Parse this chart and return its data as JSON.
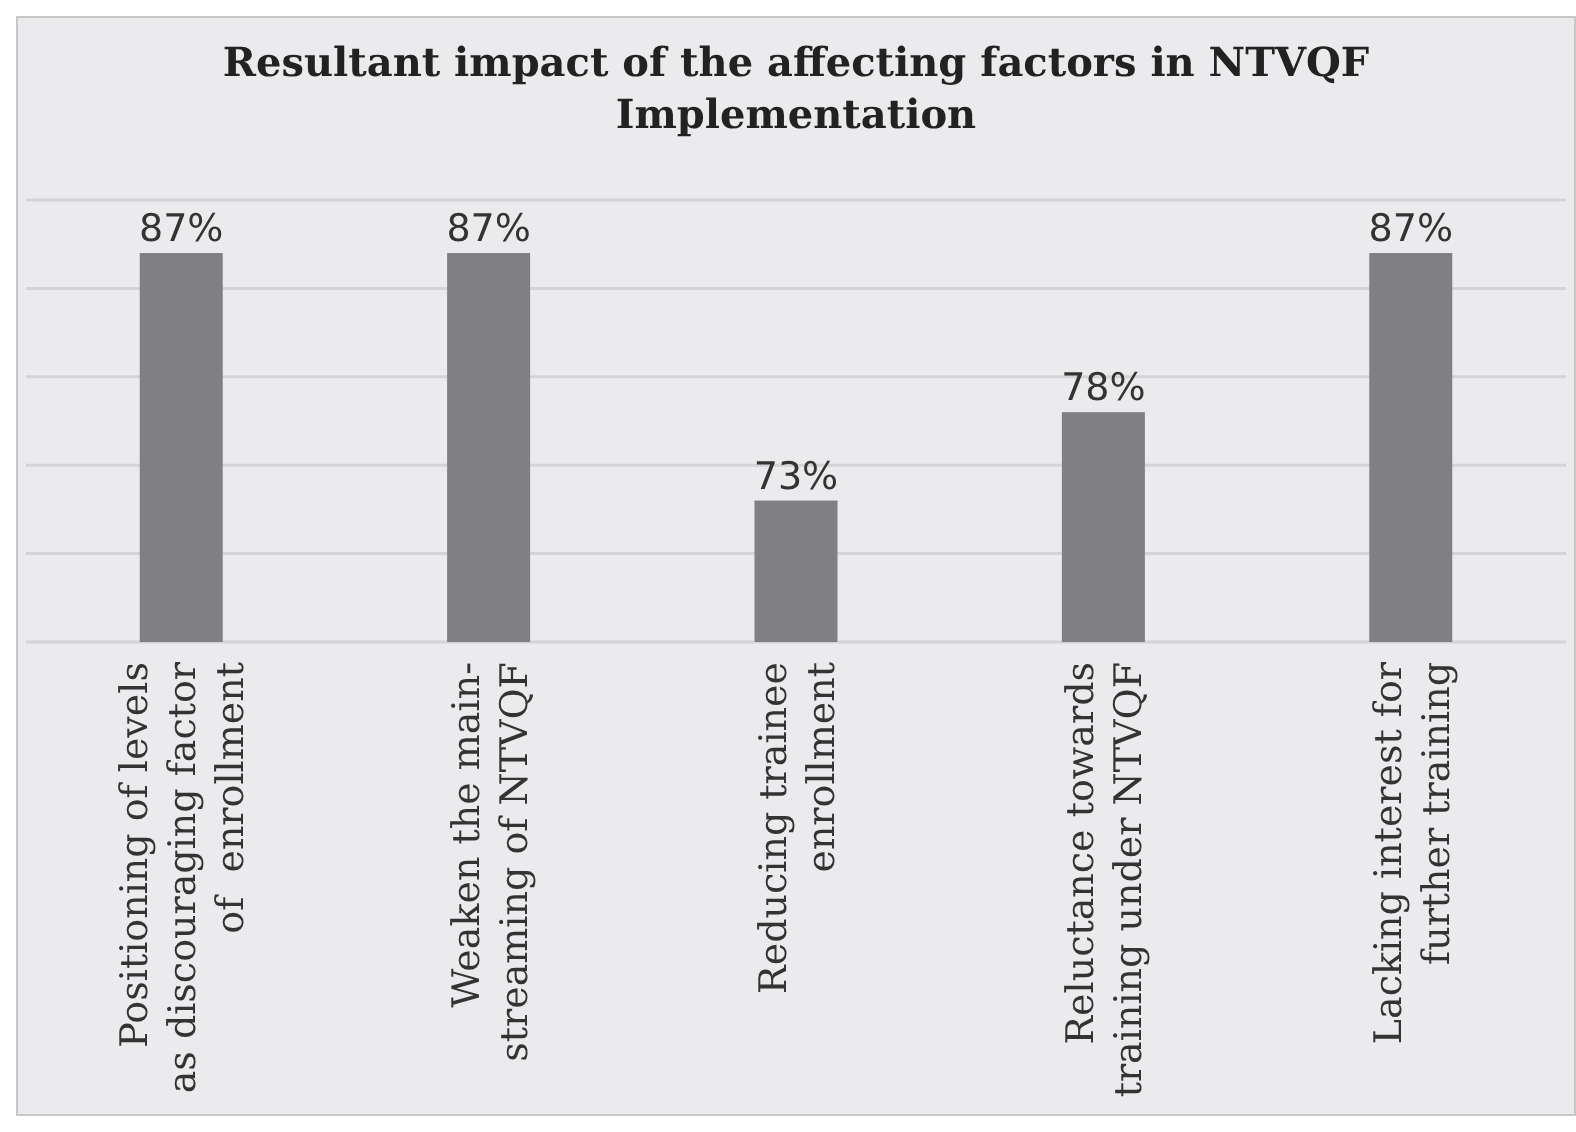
{
  "chart_data": {
    "type": "bar",
    "title": "Resultant impact of the affecting factors in NTVQF Implementation",
    "categories": [
      "Positioning of levels as discouraging factor of  enrollment",
      "Weaken the main-streaming of NTVQF",
      "Reducing trainee enrollment",
      "Reluctance towards training under NTVQF",
      "Lacking interest for further training"
    ],
    "values": [
      87,
      87,
      73,
      78,
      87
    ],
    "value_labels": [
      "87%",
      "87%",
      "73%",
      "78%",
      "87%"
    ],
    "color": "#808084",
    "ylim": [
      65,
      90
    ],
    "yticks": [
      {
        "value": 65,
        "label": null
      },
      {
        "value": 70,
        "label": null
      },
      {
        "value": 75,
        "label": null
      },
      {
        "value": 80,
        "label": null
      },
      {
        "value": 85,
        "label": null
      },
      {
        "value": 90,
        "label": null
      }
    ],
    "grid": "y",
    "tick_labels": "x"
  }
}
